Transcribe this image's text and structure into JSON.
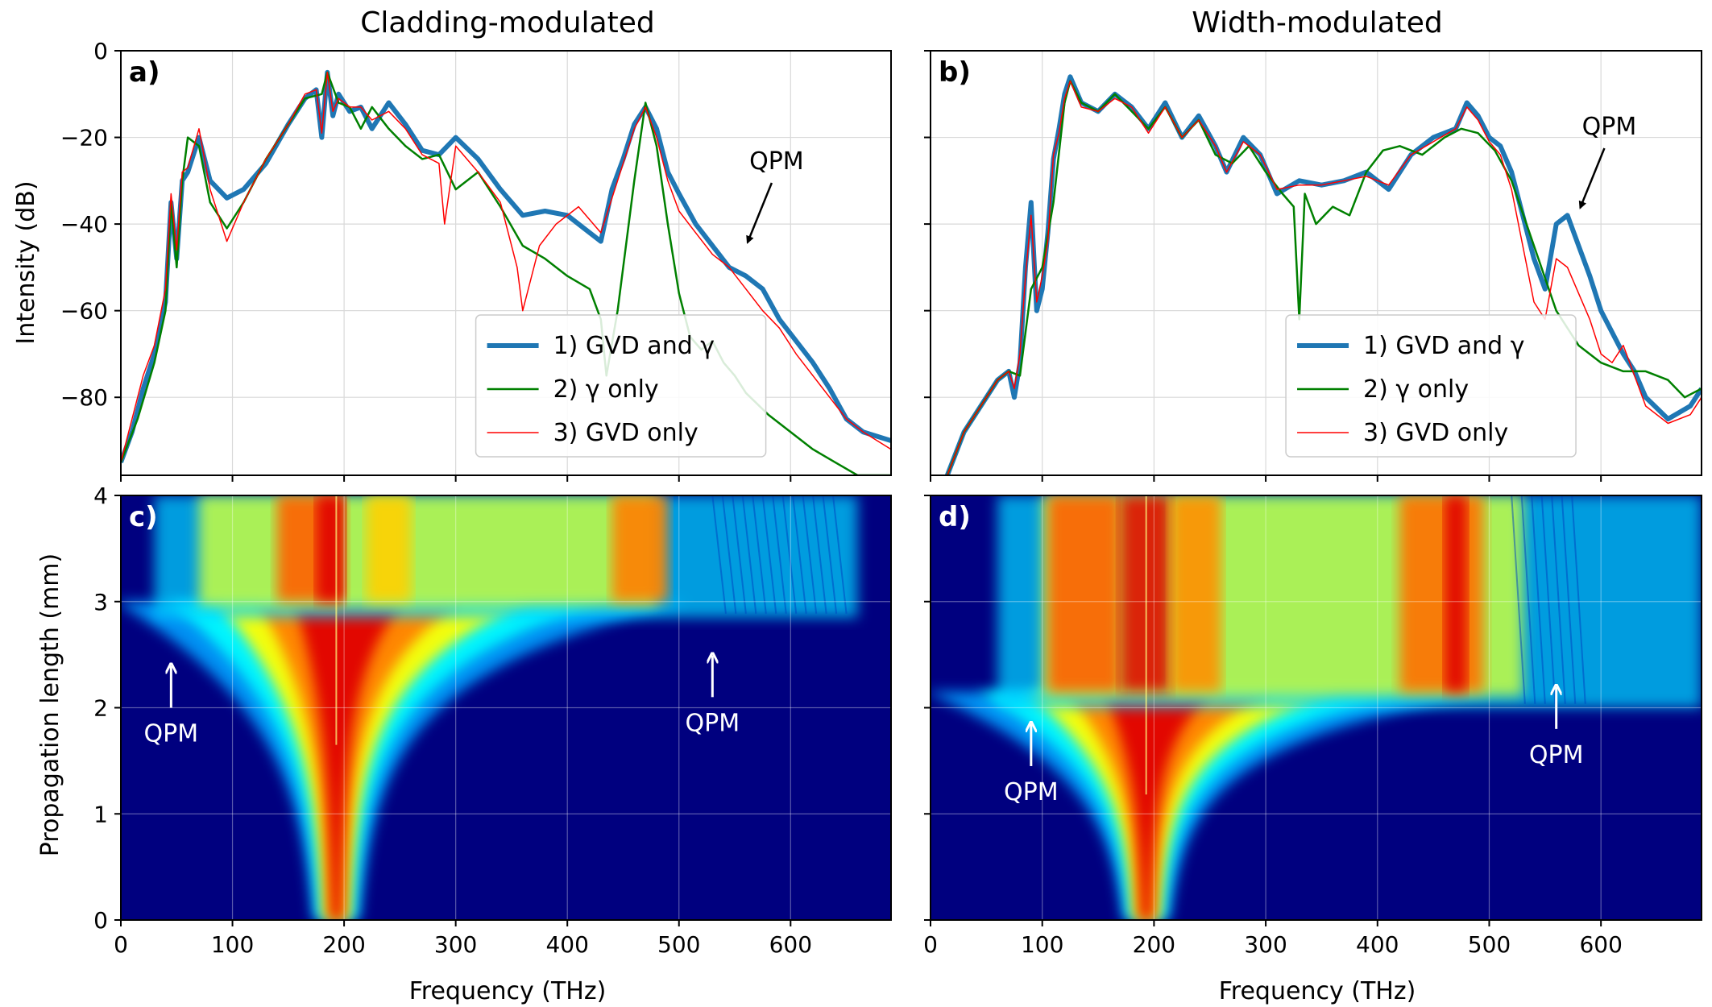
{
  "figure": {
    "col_titles": [
      "Cladding-modulated",
      "Width-modulated"
    ],
    "ylabel_top": "Intensity (dB)",
    "ylabel_bottom": "Propagation length (mm)",
    "xlabel": "Frequency (THz)"
  },
  "chart_data": [
    {
      "type": "line",
      "panel_label": "a)",
      "title": "Cladding-modulated",
      "xlabel": "",
      "ylabel": "Intensity (dB)",
      "xlim": [
        0,
        690
      ],
      "ylim": [
        -98,
        0
      ],
      "xticks": [
        0,
        100,
        200,
        300,
        400,
        500,
        600
      ],
      "yticks": [
        0,
        -20,
        -40,
        -60,
        -80
      ],
      "ytick_labels": [
        "0",
        "−20",
        "−40",
        "−60",
        "−80"
      ],
      "grid": true,
      "legend": [
        "1) GVD and γ",
        "2) γ only",
        "3) GVD only"
      ],
      "series": [
        {
          "name": "1) GVD and γ",
          "color": "#1f77b4",
          "x": [
            0,
            10,
            20,
            30,
            40,
            45,
            50,
            55,
            60,
            70,
            80,
            95,
            110,
            130,
            150,
            165,
            175,
            180,
            185,
            190,
            195,
            205,
            215,
            225,
            240,
            255,
            270,
            285,
            300,
            320,
            340,
            360,
            380,
            400,
            415,
            430,
            440,
            450,
            460,
            470,
            480,
            490,
            500,
            515,
            530,
            545,
            560,
            575,
            590,
            605,
            620,
            635,
            650,
            665,
            690
          ],
          "y": [
            -95,
            -88,
            -78,
            -70,
            -58,
            -35,
            -48,
            -30,
            -28,
            -20,
            -30,
            -34,
            -32,
            -26,
            -17,
            -11,
            -9,
            -20,
            -5,
            -15,
            -10,
            -14,
            -13,
            -18,
            -12,
            -17,
            -23,
            -24,
            -20,
            -25,
            -32,
            -38,
            -37,
            -38,
            -41,
            -44,
            -32,
            -25,
            -17,
            -13,
            -18,
            -28,
            -33,
            -40,
            -45,
            -50,
            -52,
            -55,
            -62,
            -67,
            -72,
            -78,
            -85,
            -88,
            -90
          ]
        },
        {
          "name": "2) γ only",
          "color": "#008000",
          "x": [
            0,
            15,
            30,
            40,
            45,
            50,
            55,
            60,
            70,
            80,
            95,
            110,
            130,
            150,
            165,
            180,
            185,
            195,
            205,
            215,
            225,
            240,
            255,
            270,
            285,
            300,
            320,
            340,
            360,
            380,
            400,
            420,
            430,
            435,
            445,
            460,
            470,
            480,
            490,
            500,
            510,
            520,
            530,
            540,
            550,
            560,
            580,
            600,
            620,
            640,
            660,
            690
          ],
          "y": [
            -95,
            -85,
            -72,
            -60,
            -35,
            -50,
            -30,
            -20,
            -22,
            -35,
            -41,
            -35,
            -25,
            -17,
            -11,
            -10,
            -5,
            -12,
            -13,
            -18,
            -13,
            -18,
            -22,
            -25,
            -24,
            -32,
            -28,
            -36,
            -45,
            -48,
            -52,
            -55,
            -62,
            -75,
            -60,
            -30,
            -12,
            -22,
            -40,
            -56,
            -66,
            -69,
            -67,
            -72,
            -75,
            -79,
            -84,
            -88,
            -92,
            -95,
            -98,
            -98
          ]
        },
        {
          "name": "3) GVD only",
          "color": "#ff0000",
          "x": [
            0,
            10,
            20,
            30,
            40,
            45,
            50,
            55,
            60,
            70,
            80,
            95,
            110,
            130,
            150,
            165,
            175,
            180,
            185,
            190,
            195,
            205,
            215,
            225,
            240,
            255,
            270,
            285,
            290,
            300,
            320,
            340,
            355,
            360,
            375,
            390,
            410,
            430,
            445,
            460,
            470,
            480,
            490,
            500,
            515,
            530,
            545,
            560,
            575,
            590,
            605,
            620,
            635,
            650,
            665,
            690
          ],
          "y": [
            -95,
            -85,
            -75,
            -68,
            -55,
            -33,
            -46,
            -28,
            -27,
            -18,
            -32,
            -44,
            -35,
            -25,
            -17,
            -10,
            -9,
            -19,
            -5,
            -14,
            -11,
            -13,
            -13,
            -16,
            -14,
            -18,
            -24,
            -26,
            -40,
            -22,
            -28,
            -35,
            -50,
            -60,
            -45,
            -40,
            -36,
            -42,
            -30,
            -18,
            -13,
            -20,
            -30,
            -37,
            -42,
            -47,
            -50,
            -55,
            -60,
            -64,
            -70,
            -75,
            -80,
            -85,
            -88,
            -92
          ]
        }
      ],
      "annotations": [
        {
          "text": "QPM",
          "x": 560,
          "y": -45
        }
      ]
    },
    {
      "type": "line",
      "panel_label": "b)",
      "title": "Width-modulated",
      "xlabel": "",
      "ylabel": "",
      "xlim": [
        0,
        690
      ],
      "ylim": [
        -98,
        0
      ],
      "xticks": [
        0,
        100,
        200,
        300,
        400,
        500,
        600
      ],
      "yticks": [
        0,
        -20,
        -40,
        -60,
        -80
      ],
      "grid": true,
      "legend": [
        "1) GVD and γ",
        "2) γ only",
        "3) GVD only"
      ],
      "series": [
        {
          "name": "1) GVD and γ",
          "color": "#1f77b4",
          "x": [
            15,
            30,
            45,
            60,
            70,
            75,
            80,
            85,
            90,
            95,
            100,
            105,
            110,
            115,
            120,
            125,
            135,
            150,
            165,
            180,
            195,
            210,
            225,
            240,
            255,
            265,
            280,
            295,
            310,
            330,
            350,
            370,
            390,
            410,
            430,
            450,
            470,
            480,
            490,
            500,
            510,
            520,
            530,
            540,
            550,
            560,
            570,
            580,
            590,
            600,
            610,
            620,
            630,
            640,
            660,
            680,
            690
          ],
          "y": [
            -98,
            -88,
            -82,
            -76,
            -74,
            -80,
            -72,
            -50,
            -35,
            -60,
            -55,
            -42,
            -25,
            -18,
            -10,
            -6,
            -12,
            -14,
            -10,
            -13,
            -18,
            -12,
            -20,
            -15,
            -22,
            -28,
            -20,
            -24,
            -33,
            -30,
            -31,
            -30,
            -28,
            -32,
            -24,
            -20,
            -18,
            -12,
            -15,
            -20,
            -22,
            -28,
            -38,
            -48,
            -55,
            -40,
            -38,
            -45,
            -52,
            -60,
            -65,
            -70,
            -74,
            -80,
            -85,
            -82,
            -78
          ]
        },
        {
          "name": "2) γ only",
          "color": "#008000",
          "x": [
            15,
            30,
            45,
            60,
            70,
            80,
            90,
            100,
            110,
            120,
            125,
            135,
            150,
            165,
            180,
            195,
            210,
            225,
            240,
            255,
            270,
            285,
            300,
            315,
            325,
            330,
            335,
            345,
            360,
            375,
            390,
            405,
            420,
            440,
            460,
            475,
            490,
            505,
            520,
            540,
            560,
            580,
            600,
            620,
            640,
            660,
            675,
            690
          ],
          "y": [
            -98,
            -88,
            -82,
            -76,
            -74,
            -75,
            -55,
            -50,
            -35,
            -12,
            -7,
            -12,
            -14,
            -10,
            -14,
            -18,
            -13,
            -20,
            -16,
            -24,
            -26,
            -22,
            -28,
            -33,
            -36,
            -62,
            -33,
            -40,
            -36,
            -38,
            -28,
            -23,
            -22,
            -24,
            -20,
            -18,
            -19,
            -23,
            -30,
            -45,
            -60,
            -68,
            -72,
            -74,
            -74,
            -76,
            -80,
            -78
          ]
        },
        {
          "name": "3) GVD only",
          "color": "#ff0000",
          "x": [
            15,
            30,
            45,
            60,
            70,
            75,
            80,
            85,
            90,
            95,
            100,
            105,
            110,
            115,
            120,
            125,
            135,
            150,
            165,
            180,
            195,
            210,
            225,
            240,
            255,
            265,
            280,
            295,
            310,
            330,
            350,
            370,
            390,
            410,
            430,
            450,
            470,
            480,
            490,
            500,
            510,
            520,
            530,
            540,
            550,
            560,
            570,
            580,
            590,
            600,
            610,
            620,
            630,
            640,
            660,
            680,
            690
          ],
          "y": [
            -98,
            -88,
            -82,
            -76,
            -74,
            -78,
            -70,
            -52,
            -38,
            -58,
            -52,
            -44,
            -24,
            -19,
            -11,
            -7,
            -13,
            -14,
            -11,
            -13,
            -19,
            -13,
            -20,
            -16,
            -22,
            -28,
            -21,
            -24,
            -32,
            -31,
            -31,
            -30,
            -29,
            -31,
            -24,
            -21,
            -18,
            -13,
            -16,
            -21,
            -24,
            -32,
            -45,
            -58,
            -62,
            -48,
            -50,
            -56,
            -62,
            -70,
            -72,
            -68,
            -75,
            -82,
            -86,
            -84,
            -80
          ]
        }
      ],
      "annotations": [
        {
          "text": "QPM",
          "x": 580,
          "y": -37
        }
      ]
    },
    {
      "type": "heatmap",
      "panel_label": "c)",
      "xlabel": "Frequency (THz)",
      "ylabel": "Propagation length (mm)",
      "xlim": [
        0,
        690
      ],
      "ylim": [
        0,
        4
      ],
      "xticks": [
        0,
        100,
        200,
        300,
        400,
        500,
        600
      ],
      "yticks": [
        0,
        1,
        2,
        3,
        4
      ],
      "colormap": "jet",
      "center_frequency": 193,
      "broadening_length": 3.0,
      "annotations": [
        {
          "text": "QPM",
          "x": 45,
          "y": 2.0
        },
        {
          "text": "QPM",
          "x": 530,
          "y": 2.1
        }
      ]
    },
    {
      "type": "heatmap",
      "panel_label": "d)",
      "xlabel": "Frequency (THz)",
      "ylabel": "",
      "xlim": [
        0,
        690
      ],
      "ylim": [
        0,
        4
      ],
      "xticks": [
        0,
        100,
        200,
        300,
        400,
        500,
        600
      ],
      "yticks": [
        0,
        1,
        2,
        3,
        4
      ],
      "colormap": "jet",
      "center_frequency": 193,
      "broadening_length": 2.15,
      "annotations": [
        {
          "text": "QPM",
          "x": 90,
          "y": 1.45
        },
        {
          "text": "QPM",
          "x": 560,
          "y": 1.8
        }
      ]
    }
  ]
}
